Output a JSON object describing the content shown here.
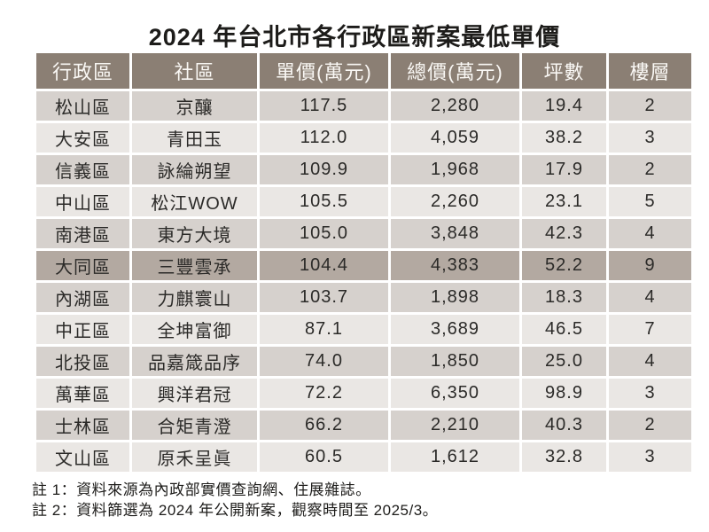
{
  "title": "2024 年台北市各行政區新案最低單價",
  "chart_data": {
    "type": "table",
    "title": "2024 年台北市各行政區新案最低單價",
    "columns": [
      "行政區",
      "社區",
      "單價(萬元)",
      "總價(萬元)",
      "坪數",
      "樓層"
    ],
    "column_keys": [
      "district",
      "community",
      "unit-price",
      "total-price",
      "size-ping",
      "floor"
    ],
    "rows": [
      [
        "松山區",
        "京釀",
        "117.5",
        "2,280",
        "19.4",
        "2"
      ],
      [
        "大安區",
        "青田玉",
        "112.0",
        "4,059",
        "38.2",
        "3"
      ],
      [
        "信義區",
        "詠綸朔望",
        "109.9",
        "1,968",
        "17.9",
        "2"
      ],
      [
        "中山區",
        "松江WOW",
        "105.5",
        "2,260",
        "23.1",
        "5"
      ],
      [
        "南港區",
        "東方大境",
        "105.0",
        "3,848",
        "42.3",
        "4"
      ],
      [
        "大同區",
        "三豐雲承",
        "104.4",
        "4,383",
        "52.2",
        "9"
      ],
      [
        "內湖區",
        "力麒寰山",
        "103.7",
        "1,898",
        "18.3",
        "4"
      ],
      [
        "中正區",
        "全坤富御",
        "87.1",
        "3,689",
        "46.5",
        "7"
      ],
      [
        "北投區",
        "品嘉箴品序",
        "74.0",
        "1,850",
        "25.0",
        "4"
      ],
      [
        "萬華區",
        "興洋君冠",
        "72.2",
        "6,350",
        "98.9",
        "3"
      ],
      [
        "士林區",
        "合矩青澄",
        "66.2",
        "2,210",
        "40.3",
        "2"
      ],
      [
        "文山區",
        "原禾呈眞",
        "60.5",
        "1,612",
        "32.8",
        "3"
      ]
    ],
    "highlighted_row": "大同區",
    "notes": [
      "註 1：資料來源為內政部實價查詢網、住展雜誌。",
      "註 2：資料篩選為 2024 年公開新案，觀察時間至 2025/3。"
    ]
  },
  "colors": {
    "page_bg": "#ffffff",
    "title_text": "#1d1c1a",
    "header_bg": "#8b7f74",
    "header_text": "#faf8f5",
    "row_odd_bg": "#d6d1cd",
    "row_even_bg": "#eae7e4",
    "row_highlight_bg": "#b3a9a1",
    "cell_text": "#2b2a28",
    "note_text": "#1d1c1a",
    "grid_gap": "#ffffff"
  }
}
